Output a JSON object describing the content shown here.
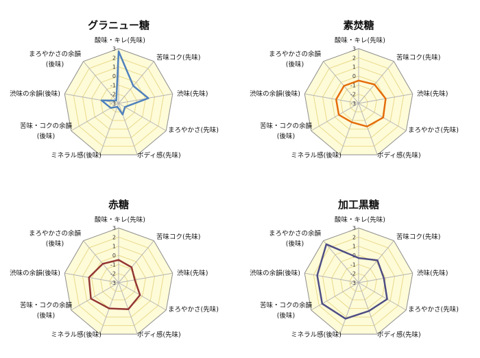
{
  "chart_data": [
    {
      "type": "radar",
      "title": "グラニュー糖",
      "color": "#4f81bd",
      "axes": [
        "酸味・キレ(先味)",
        "苦味コク(先味)",
        "渋味(先味)",
        "まろやかさ(先味)",
        "ボディ感(先味)",
        "ミネラル感(後味)",
        "苦味・コクの余韻|(後味)",
        "渋味の余韻(後味)",
        "まろやかさの余韻|(後味)"
      ],
      "tick_labels": [
        "3",
        "2",
        "1",
        "0",
        "-1",
        "-2",
        "-3"
      ],
      "rlim": [
        -3,
        3
      ],
      "values": [
        2.7,
        -0.5,
        0.3,
        -2.2,
        -1.7,
        -2.6,
        -2.0,
        -1.1,
        -2.6
      ]
    },
    {
      "type": "radar",
      "title": "素焚糖",
      "color": "#e46c0a",
      "axes": [
        "酸味・キレ(先味)",
        "苦味コク(先味)",
        "渋味(先味)",
        "まろやかさ(先味)",
        "ボディ感(先味)",
        "ミネラル感(後味)",
        "苦味・コクの余韻|(後味)",
        "渋味の余韻(後味)",
        "まろやかさの余韻|(後味)"
      ],
      "tick_labels": [
        "3",
        "2",
        "1",
        "0",
        "-1",
        "-2",
        "-3"
      ],
      "rlim": [
        -3,
        3
      ],
      "values": [
        -0.5,
        -0.3,
        0.0,
        0.1,
        -0.3,
        -0.8,
        -0.5,
        -0.5,
        -0.5
      ]
    },
    {
      "type": "radar",
      "title": "赤糖",
      "color": "#943634",
      "axes": [
        "酸味・キレ(先味)",
        "苦味コク(先味)",
        "渋味(先味)",
        "まろやかさ(先味)",
        "ボディ感(先味)",
        "ミネラル感(後味)",
        "苦味・コクの余韻|(後味)",
        "渋味の余韻(後味)",
        "まろやかさの余韻|(後味)"
      ],
      "tick_labels": [
        "3",
        "2",
        "1",
        "0",
        "-1",
        "-2",
        "-3"
      ],
      "rlim": [
        -3,
        3
      ],
      "values": [
        -0.5,
        -0.8,
        -1.2,
        -0.3,
        0.1,
        0.0,
        0.5,
        0.3,
        -0.3
      ]
    },
    {
      "type": "radar",
      "title": "加工黒糖",
      "color": "#4e4d85",
      "axes": [
        "酸味・キレ(先味)",
        "苦味コク(先味)",
        "渋味(先味)",
        "まろやかさ(先味)",
        "ボディ感(先味)",
        "ミネラル感(後味)",
        "苦味・コクの余韻|(後味)",
        "渋味の余韻(後味)",
        "まろやかさの余韻|(後味)"
      ],
      "tick_labels": [
        "3",
        "2",
        "1",
        "0",
        "-1",
        "-2",
        "-3"
      ],
      "rlim": [
        -3,
        3
      ],
      "values": [
        -0.3,
        0.2,
        -0.2,
        0.6,
        0.3,
        1.2,
        1.6,
        1.6,
        2.5
      ]
    }
  ]
}
